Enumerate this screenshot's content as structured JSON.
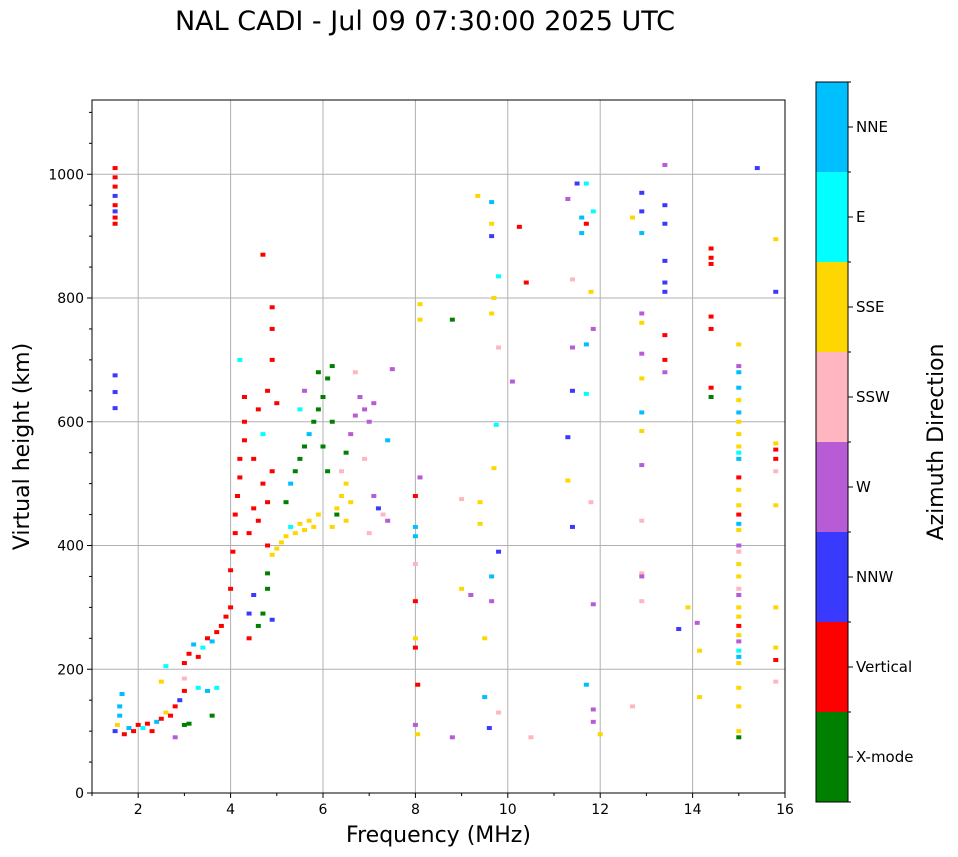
{
  "chart_data": {
    "type": "scatter",
    "title": "NAL CADI - Jul 09 07:30:00 2025 UTC",
    "xlabel": "Frequency (MHz)",
    "ylabel": "Virtual height (km)",
    "xlim": [
      1,
      16
    ],
    "ylim": [
      0,
      1120
    ],
    "xticks": [
      "2",
      "4",
      "6",
      "8",
      "10",
      "12",
      "14",
      "16"
    ],
    "xtick_values": [
      2,
      4,
      6,
      8,
      10,
      12,
      14,
      16
    ],
    "yticks": [
      "0",
      "200",
      "400",
      "600",
      "800",
      "1000"
    ],
    "ytick_values": [
      0,
      200,
      400,
      600,
      800,
      1000
    ],
    "grid": true,
    "colorbar": {
      "label": "Azimuth Direction",
      "categories": [
        "X-mode",
        "Vertical",
        "NNW",
        "W",
        "SSW",
        "SSE",
        "E",
        "NNE"
      ],
      "colors": [
        "#008000",
        "#ff0000",
        "#3a3aff",
        "#b85cd6",
        "#ffb6c1",
        "#ffd700",
        "#00ffff",
        "#00bfff"
      ]
    },
    "point_format": "[frequency_MHz, virtual_height_km, direction_index]",
    "points": [
      [
        1.5,
        1010,
        1
      ],
      [
        1.5,
        995,
        1
      ],
      [
        1.5,
        980,
        1
      ],
      [
        1.5,
        965,
        2
      ],
      [
        1.5,
        950,
        1
      ],
      [
        1.5,
        940,
        2
      ],
      [
        1.5,
        930,
        1
      ],
      [
        1.5,
        920,
        1
      ],
      [
        1.5,
        675,
        2
      ],
      [
        1.5,
        648,
        2
      ],
      [
        1.5,
        622,
        2
      ],
      [
        1.5,
        100,
        2
      ],
      [
        1.55,
        110,
        5
      ],
      [
        1.6,
        125,
        7
      ],
      [
        1.6,
        140,
        7
      ],
      [
        1.65,
        160,
        7
      ],
      [
        1.7,
        95,
        1
      ],
      [
        1.8,
        105,
        7
      ],
      [
        1.9,
        100,
        1
      ],
      [
        2.0,
        110,
        1
      ],
      [
        2.1,
        105,
        6
      ],
      [
        2.2,
        112,
        1
      ],
      [
        2.3,
        100,
        1
      ],
      [
        2.4,
        115,
        7
      ],
      [
        2.5,
        120,
        1
      ],
      [
        2.6,
        130,
        5
      ],
      [
        2.7,
        125,
        1
      ],
      [
        2.8,
        140,
        1
      ],
      [
        2.9,
        150,
        2
      ],
      [
        3.0,
        165,
        1
      ],
      [
        2.6,
        205,
        6
      ],
      [
        2.5,
        180,
        5
      ],
      [
        2.8,
        90,
        3
      ],
      [
        3.0,
        110,
        0
      ],
      [
        3.1,
        112,
        0
      ],
      [
        3.0,
        185,
        4
      ],
      [
        3.0,
        210,
        1
      ],
      [
        3.1,
        225,
        1
      ],
      [
        3.2,
        240,
        7
      ],
      [
        3.3,
        220,
        1
      ],
      [
        3.4,
        235,
        6
      ],
      [
        3.5,
        250,
        1
      ],
      [
        3.6,
        245,
        7
      ],
      [
        3.7,
        260,
        1
      ],
      [
        3.8,
        270,
        1
      ],
      [
        3.9,
        285,
        1
      ],
      [
        3.3,
        170,
        6
      ],
      [
        3.5,
        165,
        7
      ],
      [
        3.7,
        170,
        6
      ],
      [
        3.6,
        125,
        0
      ],
      [
        4.0,
        300,
        1
      ],
      [
        4.0,
        330,
        1
      ],
      [
        4.0,
        360,
        1
      ],
      [
        4.05,
        390,
        1
      ],
      [
        4.1,
        420,
        1
      ],
      [
        4.1,
        450,
        1
      ],
      [
        4.15,
        480,
        1
      ],
      [
        4.2,
        510,
        1
      ],
      [
        4.2,
        540,
        1
      ],
      [
        4.3,
        570,
        1
      ],
      [
        4.3,
        600,
        1
      ],
      [
        4.3,
        640,
        1
      ],
      [
        4.2,
        700,
        6
      ],
      [
        4.7,
        870,
        1
      ],
      [
        4.4,
        250,
        1
      ],
      [
        4.4,
        290,
        2
      ],
      [
        4.5,
        320,
        2
      ],
      [
        4.6,
        270,
        0
      ],
      [
        4.7,
        290,
        0
      ],
      [
        4.8,
        355,
        0
      ],
      [
        4.9,
        280,
        2
      ],
      [
        4.8,
        330,
        0
      ],
      [
        4.4,
        420,
        1
      ],
      [
        4.5,
        460,
        1
      ],
      [
        4.6,
        440,
        1
      ],
      [
        4.7,
        500,
        1
      ],
      [
        4.8,
        470,
        1
      ],
      [
        4.9,
        520,
        1
      ],
      [
        4.5,
        540,
        1
      ],
      [
        4.7,
        580,
        6
      ],
      [
        4.6,
        620,
        1
      ],
      [
        4.8,
        650,
        1
      ],
      [
        4.9,
        700,
        1
      ],
      [
        4.9,
        750,
        1
      ],
      [
        4.9,
        785,
        1
      ],
      [
        5.0,
        630,
        1
      ],
      [
        4.8,
        400,
        1
      ],
      [
        4.9,
        385,
        5
      ],
      [
        5.0,
        395,
        5
      ],
      [
        5.1,
        405,
        5
      ],
      [
        5.2,
        415,
        5
      ],
      [
        5.3,
        430,
        6
      ],
      [
        5.4,
        420,
        5
      ],
      [
        5.5,
        435,
        5
      ],
      [
        5.6,
        425,
        5
      ],
      [
        5.7,
        440,
        5
      ],
      [
        5.8,
        430,
        5
      ],
      [
        5.9,
        450,
        5
      ],
      [
        5.2,
        470,
        0
      ],
      [
        5.3,
        500,
        7
      ],
      [
        5.4,
        520,
        0
      ],
      [
        5.5,
        540,
        0
      ],
      [
        5.6,
        560,
        0
      ],
      [
        5.7,
        580,
        7
      ],
      [
        5.8,
        600,
        0
      ],
      [
        5.9,
        620,
        0
      ],
      [
        6.0,
        640,
        0
      ],
      [
        6.0,
        560,
        0
      ],
      [
        6.1,
        670,
        0
      ],
      [
        6.2,
        690,
        0
      ],
      [
        6.1,
        520,
        0
      ],
      [
        6.2,
        600,
        0
      ],
      [
        6.3,
        450,
        0
      ],
      [
        5.5,
        620,
        6
      ],
      [
        5.6,
        650,
        3
      ],
      [
        5.9,
        680,
        0
      ],
      [
        6.3,
        460,
        5
      ],
      [
        6.4,
        480,
        5
      ],
      [
        6.5,
        500,
        5
      ],
      [
        6.6,
        470,
        5
      ],
      [
        6.5,
        440,
        5
      ],
      [
        6.2,
        430,
        5
      ],
      [
        6.4,
        520,
        4
      ],
      [
        6.5,
        550,
        0
      ],
      [
        6.6,
        580,
        3
      ],
      [
        6.7,
        610,
        3
      ],
      [
        6.8,
        640,
        3
      ],
      [
        6.9,
        620,
        3
      ],
      [
        7.0,
        600,
        3
      ],
      [
        7.1,
        630,
        3
      ],
      [
        6.9,
        540,
        4
      ],
      [
        7.0,
        420,
        4
      ],
      [
        7.1,
        480,
        3
      ],
      [
        7.2,
        460,
        2
      ],
      [
        7.3,
        450,
        4
      ],
      [
        7.4,
        440,
        3
      ],
      [
        7.4,
        570,
        7
      ],
      [
        7.5,
        685,
        3
      ],
      [
        6.7,
        680,
        4
      ],
      [
        8.0,
        480,
        1
      ],
      [
        8.0,
        430,
        7
      ],
      [
        8.0,
        415,
        7
      ],
      [
        8.0,
        370,
        4
      ],
      [
        8.0,
        310,
        1
      ],
      [
        8.0,
        250,
        5
      ],
      [
        8.0,
        235,
        1
      ],
      [
        8.05,
        175,
        1
      ],
      [
        8.0,
        110,
        3
      ],
      [
        8.05,
        95,
        5
      ],
      [
        8.1,
        790,
        5
      ],
      [
        8.1,
        765,
        5
      ],
      [
        8.1,
        510,
        3
      ],
      [
        8.8,
        765,
        0
      ],
      [
        8.8,
        90,
        3
      ],
      [
        9.0,
        475,
        4
      ],
      [
        9.0,
        330,
        5
      ],
      [
        9.2,
        320,
        3
      ],
      [
        9.35,
        965,
        5
      ],
      [
        9.4,
        470,
        5
      ],
      [
        9.4,
        435,
        5
      ],
      [
        9.5,
        250,
        5
      ],
      [
        9.5,
        155,
        7
      ],
      [
        9.6,
        105,
        2
      ],
      [
        9.65,
        955,
        7
      ],
      [
        9.65,
        920,
        5
      ],
      [
        9.65,
        900,
        2
      ],
      [
        9.7,
        800,
        5
      ],
      [
        9.65,
        775,
        5
      ],
      [
        9.7,
        525,
        5
      ],
      [
        9.65,
        350,
        7
      ],
      [
        9.65,
        310,
        3
      ],
      [
        9.8,
        835,
        6
      ],
      [
        9.8,
        390,
        2
      ],
      [
        9.8,
        130,
        4
      ],
      [
        9.75,
        595,
        6
      ],
      [
        9.8,
        720,
        4
      ],
      [
        10.25,
        915,
        1
      ],
      [
        10.4,
        825,
        1
      ],
      [
        10.1,
        665,
        3
      ],
      [
        10.5,
        90,
        4
      ],
      [
        11.3,
        960,
        3
      ],
      [
        11.3,
        575,
        2
      ],
      [
        11.3,
        505,
        5
      ],
      [
        11.4,
        830,
        4
      ],
      [
        11.4,
        720,
        3
      ],
      [
        11.4,
        650,
        2
      ],
      [
        11.4,
        430,
        2
      ],
      [
        11.5,
        985,
        2
      ],
      [
        11.6,
        930,
        7
      ],
      [
        11.6,
        905,
        7
      ],
      [
        11.7,
        920,
        1
      ],
      [
        11.7,
        725,
        7
      ],
      [
        11.7,
        645,
        6
      ],
      [
        11.7,
        985,
        6
      ],
      [
        11.85,
        940,
        6
      ],
      [
        11.8,
        810,
        5
      ],
      [
        11.85,
        750,
        3
      ],
      [
        11.8,
        470,
        4
      ],
      [
        11.7,
        175,
        7
      ],
      [
        11.85,
        305,
        3
      ],
      [
        11.85,
        135,
        3
      ],
      [
        11.85,
        115,
        3
      ],
      [
        12.0,
        95,
        5
      ],
      [
        12.7,
        930,
        5
      ],
      [
        12.9,
        970,
        2
      ],
      [
        12.9,
        940,
        2
      ],
      [
        12.9,
        905,
        7
      ],
      [
        12.9,
        775,
        3
      ],
      [
        12.9,
        760,
        5
      ],
      [
        12.9,
        710,
        3
      ],
      [
        12.9,
        670,
        5
      ],
      [
        12.9,
        615,
        7
      ],
      [
        12.9,
        585,
        5
      ],
      [
        12.9,
        530,
        3
      ],
      [
        12.9,
        440,
        4
      ],
      [
        12.9,
        355,
        4
      ],
      [
        12.9,
        350,
        3
      ],
      [
        12.9,
        310,
        4
      ],
      [
        12.7,
        140,
        4
      ],
      [
        13.4,
        1015,
        3
      ],
      [
        13.4,
        950,
        2
      ],
      [
        13.4,
        920,
        2
      ],
      [
        13.4,
        860,
        2
      ],
      [
        13.4,
        825,
        2
      ],
      [
        13.4,
        810,
        2
      ],
      [
        13.4,
        740,
        1
      ],
      [
        13.4,
        700,
        1
      ],
      [
        13.4,
        680,
        3
      ],
      [
        13.7,
        265,
        2
      ],
      [
        13.9,
        300,
        5
      ],
      [
        14.1,
        275,
        3
      ],
      [
        14.15,
        230,
        5
      ],
      [
        14.15,
        155,
        5
      ],
      [
        14.4,
        880,
        1
      ],
      [
        14.4,
        865,
        1
      ],
      [
        14.4,
        855,
        1
      ],
      [
        14.4,
        770,
        1
      ],
      [
        14.4,
        750,
        1
      ],
      [
        14.4,
        655,
        1
      ],
      [
        14.4,
        640,
        0
      ],
      [
        15.0,
        725,
        5
      ],
      [
        15.0,
        690,
        3
      ],
      [
        15.0,
        680,
        7
      ],
      [
        15.0,
        655,
        7
      ],
      [
        15.0,
        635,
        5
      ],
      [
        15.0,
        615,
        7
      ],
      [
        15.0,
        600,
        5
      ],
      [
        15.0,
        580,
        5
      ],
      [
        15.0,
        560,
        5
      ],
      [
        15.0,
        550,
        6
      ],
      [
        15.0,
        540,
        7
      ],
      [
        15.0,
        510,
        1
      ],
      [
        15.0,
        490,
        5
      ],
      [
        15.0,
        465,
        5
      ],
      [
        15.0,
        450,
        1
      ],
      [
        15.0,
        435,
        7
      ],
      [
        15.0,
        425,
        5
      ],
      [
        15.0,
        400,
        3
      ],
      [
        15.0,
        390,
        4
      ],
      [
        15.0,
        370,
        5
      ],
      [
        15.0,
        350,
        5
      ],
      [
        15.0,
        330,
        4
      ],
      [
        15.0,
        320,
        3
      ],
      [
        15.0,
        300,
        5
      ],
      [
        15.0,
        285,
        5
      ],
      [
        15.0,
        270,
        1
      ],
      [
        15.0,
        255,
        5
      ],
      [
        15.0,
        245,
        3
      ],
      [
        15.0,
        230,
        6
      ],
      [
        15.0,
        220,
        7
      ],
      [
        15.0,
        210,
        5
      ],
      [
        15.0,
        170,
        5
      ],
      [
        15.0,
        140,
        5
      ],
      [
        15.0,
        100,
        5
      ],
      [
        15.0,
        90,
        0
      ],
      [
        15.4,
        1010,
        2
      ],
      [
        15.8,
        895,
        5
      ],
      [
        15.8,
        810,
        2
      ],
      [
        15.8,
        565,
        5
      ],
      [
        15.8,
        555,
        1
      ],
      [
        15.8,
        540,
        1
      ],
      [
        15.8,
        520,
        4
      ],
      [
        15.8,
        465,
        5
      ],
      [
        15.8,
        300,
        5
      ],
      [
        15.8,
        235,
        5
      ],
      [
        15.8,
        215,
        1
      ],
      [
        15.8,
        180,
        4
      ]
    ]
  }
}
